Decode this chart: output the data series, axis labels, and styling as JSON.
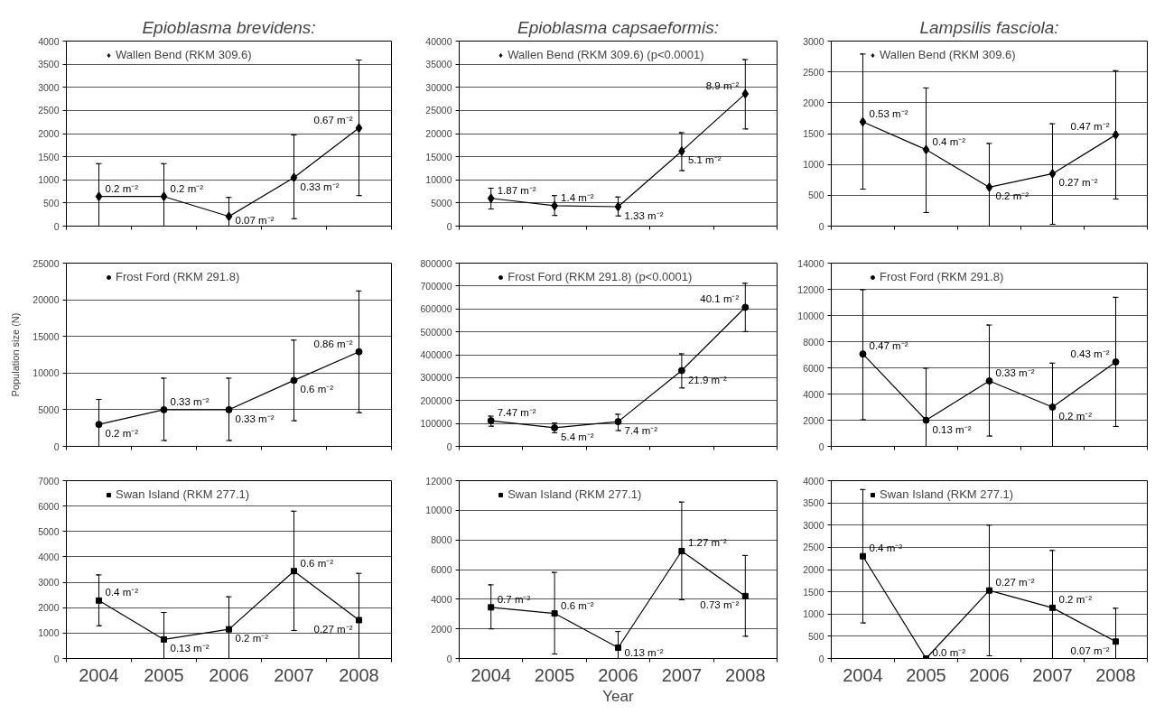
{
  "chart_data": [
    {
      "type": "line",
      "title": "Epioblasma brevidens:",
      "categories": [
        "2004",
        "2005",
        "2006",
        "2007",
        "2008"
      ],
      "ylim": [
        0,
        4000
      ],
      "yticks": [
        0,
        500,
        1000,
        1500,
        2000,
        2500,
        3000,
        3500,
        4000
      ],
      "grid": "y",
      "legend": "top left",
      "marker": "diamond",
      "tick_labels": "y",
      "series": [
        {
          "name": "Wallen Bend (RKM 309.6)",
          "color": "#000000",
          "values": [
            640,
            640,
            210,
            1050,
            2120
          ],
          "errors": [
            [
              0,
              1350
            ],
            [
              0,
              1350
            ],
            [
              0,
              620
            ],
            [
              160,
              1970
            ],
            [
              660,
              3590
            ]
          ]
        }
      ],
      "annotations": [
        {
          "text": "0.2 m⁻²",
          "x": "2004",
          "y": 640
        },
        {
          "text": "0.2 m⁻²",
          "x": "2005",
          "y": 640
        },
        {
          "text": "0.07 m⁻²",
          "x": "2006",
          "y": 210
        },
        {
          "text": "0.33 m⁻²",
          "x": "2007",
          "y": 1050
        },
        {
          "text": "0.67 m⁻²",
          "x": "2008",
          "y": 2120
        }
      ]
    },
    {
      "type": "line",
      "title": "Epioblasma capsaeformis:",
      "categories": [
        "2004",
        "2005",
        "2006",
        "2007",
        "2008"
      ],
      "ylim": [
        0,
        40000
      ],
      "yticks": [
        0,
        5000,
        10000,
        15000,
        20000,
        25000,
        30000,
        35000,
        40000
      ],
      "grid": "y",
      "legend": "top left",
      "marker": "diamond",
      "tick_labels": "y",
      "series": [
        {
          "name": "Wallen Bend (RKM 309.6) (p<0.0001)",
          "color": "#000000",
          "values": [
            6000,
            4400,
            4200,
            16200,
            28600
          ],
          "errors": [
            [
              3700,
              8200
            ],
            [
              2300,
              6600
            ],
            [
              2200,
              6300
            ],
            [
              12000,
              20200
            ],
            [
              21000,
              36000
            ]
          ]
        }
      ],
      "annotations": [
        {
          "text": "1.87 m⁻²",
          "x": "2004",
          "y": 6000
        },
        {
          "text": "1.4 m⁻²",
          "x": "2005",
          "y": 4400
        },
        {
          "text": "1.33 m⁻²",
          "x": "2006",
          "y": 4200
        },
        {
          "text": "5.1 m⁻²",
          "x": "2007",
          "y": 16200
        },
        {
          "text": "8.9 m⁻²",
          "x": "2008",
          "y": 28600
        }
      ]
    },
    {
      "type": "line",
      "title": "Lampsilis fasciola:",
      "categories": [
        "2004",
        "2005",
        "2006",
        "2007",
        "2008"
      ],
      "ylim": [
        0,
        3000
      ],
      "yticks": [
        0,
        500,
        1000,
        1500,
        2000,
        2500,
        3000
      ],
      "grid": "y",
      "legend": "top left",
      "marker": "diamond",
      "tick_labels": "y",
      "series": [
        {
          "name": "Wallen Bend (RKM 309.6)",
          "color": "#000000",
          "values": [
            1690,
            1240,
            630,
            850,
            1480
          ],
          "errors": [
            [
              600,
              2790
            ],
            [
              220,
              2240
            ],
            [
              0,
              1340
            ],
            [
              30,
              1660
            ],
            [
              440,
              2520
            ]
          ]
        }
      ],
      "annotations": [
        {
          "text": "0.53 m⁻²",
          "x": "2004",
          "y": 1690
        },
        {
          "text": "0.4 m⁻²",
          "x": "2005",
          "y": 1240
        },
        {
          "text": "0.2 m⁻²",
          "x": "2006",
          "y": 630
        },
        {
          "text": "0.27 m⁻²",
          "x": "2007",
          "y": 850
        },
        {
          "text": "0.47 m⁻²",
          "x": "2008",
          "y": 1480
        }
      ]
    },
    {
      "type": "line",
      "ylabel": "Population size (N)",
      "categories": [
        "2004",
        "2005",
        "2006",
        "2007",
        "2008"
      ],
      "ylim": [
        0,
        25000
      ],
      "yticks": [
        0,
        5000,
        10000,
        15000,
        20000,
        25000
      ],
      "grid": "y",
      "legend": "top left",
      "marker": "circle",
      "tick_labels": "y",
      "series": [
        {
          "name": "Frost Ford (RKM 291.8)",
          "color": "#000000",
          "values": [
            3000,
            5000,
            5000,
            9000,
            12900
          ],
          "errors": [
            [
              0,
              6400
            ],
            [
              800,
              9300
            ],
            [
              800,
              9300
            ],
            [
              3500,
              14500
            ],
            [
              4600,
              21200
            ]
          ]
        }
      ],
      "annotations": [
        {
          "text": "0.2 m⁻²",
          "x": "2004",
          "y": 3000
        },
        {
          "text": "0.33 m⁻²",
          "x": "2005",
          "y": 5000
        },
        {
          "text": "0.33 m⁻²",
          "x": "2006",
          "y": 5000
        },
        {
          "text": "0.6 m⁻²",
          "x": "2007",
          "y": 9000
        },
        {
          "text": "0.86 m⁻²",
          "x": "2008",
          "y": 12900
        }
      ]
    },
    {
      "type": "line",
      "categories": [
        "2004",
        "2005",
        "2006",
        "2007",
        "2008"
      ],
      "ylim": [
        0,
        800000
      ],
      "yticks": [
        0,
        100000,
        200000,
        300000,
        400000,
        500000,
        600000,
        700000,
        800000
      ],
      "grid": "y",
      "legend": "top left",
      "marker": "circle",
      "tick_labels": "y",
      "series": [
        {
          "name": "Frost Ford (RKM 291.8) (p<0.0001)",
          "color": "#000000",
          "values": [
            112000,
            81000,
            108000,
            331000,
            607000
          ],
          "errors": [
            [
              88000,
              132000
            ],
            [
              59000,
              102000
            ],
            [
              69000,
              140000
            ],
            [
              255000,
              404000
            ],
            [
              501000,
              712000
            ]
          ]
        }
      ],
      "annotations": [
        {
          "text": "7.47 m⁻²",
          "x": "2004",
          "y": 112000
        },
        {
          "text": "5.4 m⁻²",
          "x": "2005",
          "y": 81000
        },
        {
          "text": "7.4 m⁻²",
          "x": "2006",
          "y": 108000
        },
        {
          "text": "21.9 m⁻²",
          "x": "2007",
          "y": 331000
        },
        {
          "text": "40.1 m⁻²",
          "x": "2008",
          "y": 607000
        }
      ]
    },
    {
      "type": "line",
      "categories": [
        "2004",
        "2005",
        "2006",
        "2007",
        "2008"
      ],
      "ylim": [
        0,
        14000
      ],
      "yticks": [
        0,
        2000,
        4000,
        6000,
        8000,
        10000,
        12000,
        14000
      ],
      "grid": "y",
      "legend": "top left",
      "marker": "circle",
      "tick_labels": "y",
      "series": [
        {
          "name": "Frost Ford (RKM 291.8)",
          "color": "#000000",
          "values": [
            7060,
            2000,
            5000,
            3000,
            6450
          ],
          "errors": [
            [
              2030,
              11970
            ],
            [
              0,
              5970
            ],
            [
              790,
              9270
            ],
            [
              0,
              6360
            ],
            [
              1520,
              11390
            ]
          ]
        }
      ],
      "annotations": [
        {
          "text": "0.47 m⁻²",
          "x": "2004",
          "y": 7060
        },
        {
          "text": "0.13 m⁻²",
          "x": "2005",
          "y": 2000
        },
        {
          "text": "0.33 m⁻²",
          "x": "2006",
          "y": 5000
        },
        {
          "text": "0.2 m⁻²",
          "x": "2007",
          "y": 3000
        },
        {
          "text": "0.43 m⁻²",
          "x": "2008",
          "y": 6450
        }
      ]
    },
    {
      "type": "line",
      "categories": [
        "2004",
        "2005",
        "2006",
        "2007",
        "2008"
      ],
      "ylim": [
        0,
        7000
      ],
      "yticks": [
        0,
        1000,
        2000,
        3000,
        4000,
        5000,
        6000,
        7000
      ],
      "grid": "y",
      "legend": "top left",
      "marker": "square",
      "series": [
        {
          "name": "Swan Island (RKM 277.1)",
          "color": "#000000",
          "values": [
            2280,
            750,
            1150,
            3440,
            1510
          ],
          "errors": [
            [
              1290,
              3290
            ],
            [
              0,
              1810
            ],
            [
              0,
              2430
            ],
            [
              1100,
              5800
            ],
            [
              0,
              3350
            ]
          ]
        }
      ],
      "annotations": [
        {
          "text": "0.4 m⁻²",
          "x": "2004",
          "y": 2280
        },
        {
          "text": "0.13 m⁻²",
          "x": "2005",
          "y": 750
        },
        {
          "text": "0.2 m⁻²",
          "x": "2006",
          "y": 1150
        },
        {
          "text": "0.6 m⁻²",
          "x": "2007",
          "y": 3440
        },
        {
          "text": "0.27 m⁻²",
          "x": "2008",
          "y": 1510
        }
      ]
    },
    {
      "type": "line",
      "xlabel": "Year",
      "categories": [
        "2004",
        "2005",
        "2006",
        "2007",
        "2008"
      ],
      "ylim": [
        0,
        12000
      ],
      "yticks": [
        0,
        2000,
        4000,
        6000,
        8000,
        10000,
        12000
      ],
      "grid": "y",
      "legend": "top left",
      "marker": "square",
      "series": [
        {
          "name": "Swan Island (RKM 277.1)",
          "color": "#000000",
          "values": [
            3450,
            3040,
            730,
            7250,
            4210
          ],
          "errors": [
            [
              2000,
              4970
            ],
            [
              300,
              5810
            ],
            [
              0,
              1820
            ],
            [
              3960,
              10560
            ],
            [
              1500,
              6950
            ]
          ]
        }
      ],
      "annotations": [
        {
          "text": "0.7 m⁻²",
          "x": "2004",
          "y": 3450
        },
        {
          "text": "0.6 m⁻²",
          "x": "2005",
          "y": 3040
        },
        {
          "text": "0.13 m⁻²",
          "x": "2006",
          "y": 730
        },
        {
          "text": "1.27 m⁻²",
          "x": "2007",
          "y": 7250
        },
        {
          "text": "0.73 m⁻²",
          "x": "2008",
          "y": 4210
        }
      ]
    },
    {
      "type": "line",
      "categories": [
        "2004",
        "2005",
        "2006",
        "2007",
        "2008"
      ],
      "ylim": [
        0,
        4000
      ],
      "yticks": [
        0,
        500,
        1000,
        1500,
        2000,
        2500,
        3000,
        3500,
        4000
      ],
      "grid": "y",
      "legend": "top left",
      "marker": "square",
      "series": [
        {
          "name": "Swan Island (RKM 277.1)",
          "color": "#000000",
          "values": [
            2300,
            0,
            1530,
            1140,
            380
          ],
          "errors": [
            [
              800,
              3800
            ],
            null,
            [
              60,
              3000
            ],
            [
              0,
              2430
            ],
            [
              0,
              1130
            ]
          ]
        }
      ],
      "annotations": [
        {
          "text": "0.4 m⁻²",
          "x": "2004",
          "y": 2300
        },
        {
          "text": "0.0 m⁻²",
          "x": "2005",
          "y": 0
        },
        {
          "text": "0.27 m⁻²",
          "x": "2006",
          "y": 1530
        },
        {
          "text": "0.2 m⁻²",
          "x": "2007",
          "y": 1140
        },
        {
          "text": "0.07 m⁻²",
          "x": "2008",
          "y": 380
        }
      ]
    }
  ]
}
